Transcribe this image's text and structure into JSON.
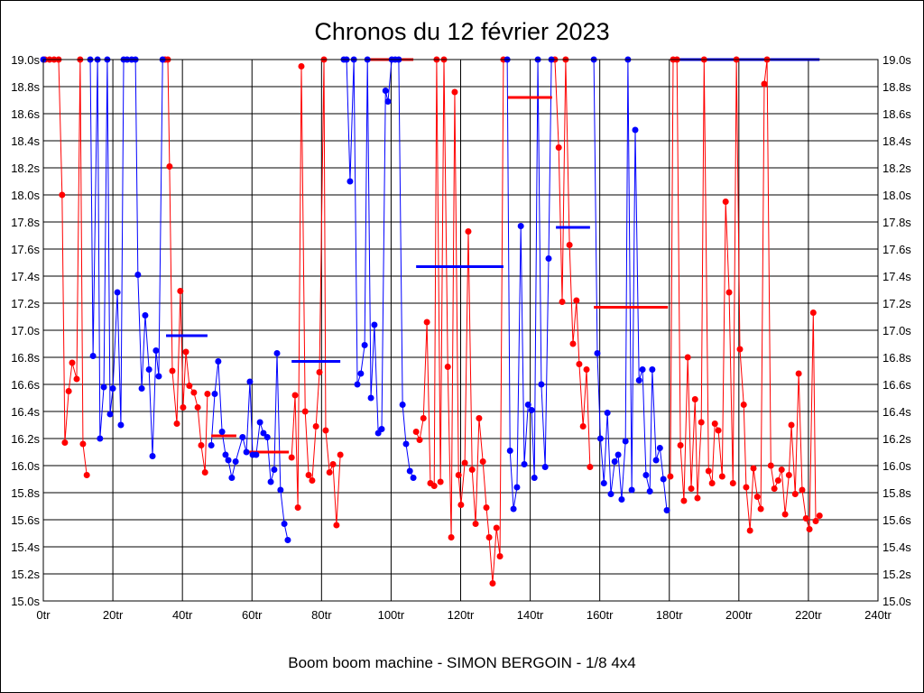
{
  "chart_data": {
    "type": "line",
    "title": "Chronos du 12 février 2023",
    "xlabel": "Boom boom machine - SIMON BERGOIN - 1/8 4x4",
    "ylabel": "",
    "xlim": [
      0,
      240
    ],
    "ylim": [
      15.0,
      19.0
    ],
    "grid": true,
    "x_ticks": [
      "0tr",
      "20tr",
      "40tr",
      "60tr",
      "80tr",
      "100tr",
      "120tr",
      "140tr",
      "160tr",
      "180tr",
      "200tr",
      "220tr",
      "240tr"
    ],
    "y_ticks": [
      "15.0s",
      "15.2s",
      "15.4s",
      "15.6s",
      "15.8s",
      "16.0s",
      "16.2s",
      "16.4s",
      "16.6s",
      "16.8s",
      "17.0s",
      "17.2s",
      "17.4s",
      "17.6s",
      "17.8s",
      "18.0s",
      "18.2s",
      "18.4s",
      "18.6s",
      "18.8s",
      "19.0s"
    ],
    "series": [
      {
        "name": "red",
        "color": "#ff0000",
        "stints": [
          [
            [
              0.5,
              19.0
            ],
            [
              1.8,
              19.0
            ],
            [
              3.1,
              19.0
            ],
            [
              4.4,
              19.0
            ],
            [
              5.4,
              18.0
            ],
            [
              6.2,
              16.17
            ],
            [
              7.3,
              16.55
            ],
            [
              8.3,
              16.76
            ],
            [
              9.6,
              16.64
            ],
            [
              10.6,
              19.0
            ],
            [
              11.4,
              16.16
            ],
            [
              12.5,
              15.93
            ]
          ],
          [
            [
              35.0,
              19.0
            ],
            [
              35.8,
              19.0
            ],
            [
              36.3,
              18.21
            ],
            [
              37.1,
              16.7
            ],
            [
              38.4,
              16.31
            ],
            [
              39.4,
              17.29
            ],
            [
              40.2,
              16.43
            ],
            [
              41.0,
              16.84
            ],
            [
              42.0,
              16.59
            ],
            [
              43.3,
              16.54
            ],
            [
              44.4,
              16.43
            ],
            [
              45.4,
              16.15
            ],
            [
              46.5,
              15.95
            ],
            [
              47.2,
              16.53
            ]
          ],
          [
            [
              71.4,
              16.06
            ],
            [
              72.4,
              16.52
            ],
            [
              73.2,
              15.69
            ],
            [
              74.2,
              18.95
            ],
            [
              75.3,
              16.4
            ],
            [
              76.3,
              15.93
            ],
            [
              77.3,
              15.89
            ],
            [
              78.4,
              16.29
            ],
            [
              79.4,
              16.69
            ],
            [
              80.7,
              19.0
            ],
            [
              81.2,
              16.26
            ],
            [
              82.3,
              15.95
            ],
            [
              83.3,
              16.01
            ],
            [
              84.3,
              15.56
            ],
            [
              85.4,
              16.08
            ]
          ],
          [
            [
              107.2,
              16.25
            ],
            [
              108.2,
              16.19
            ],
            [
              109.3,
              16.35
            ],
            [
              110.3,
              17.06
            ],
            [
              111.3,
              15.87
            ],
            [
              112.4,
              15.85
            ],
            [
              113.1,
              19.0
            ],
            [
              114.2,
              15.88
            ],
            [
              115.2,
              19.0
            ],
            [
              116.3,
              16.73
            ],
            [
              117.3,
              15.47
            ],
            [
              118.3,
              18.76
            ],
            [
              119.4,
              15.93
            ],
            [
              120.1,
              15.71
            ],
            [
              121.2,
              16.02
            ],
            [
              122.2,
              17.73
            ],
            [
              123.3,
              15.97
            ],
            [
              124.3,
              15.57
            ],
            [
              125.3,
              16.35
            ],
            [
              126.4,
              16.03
            ],
            [
              127.4,
              15.69
            ],
            [
              128.2,
              15.47
            ],
            [
              129.2,
              15.13
            ],
            [
              130.3,
              15.54
            ],
            [
              131.3,
              15.33
            ],
            [
              132.3,
              19.0
            ]
          ],
          [
            [
              147.1,
              19.0
            ],
            [
              148.2,
              18.35
            ],
            [
              149.2,
              17.21
            ],
            [
              150.2,
              19.0
            ],
            [
              151.3,
              17.63
            ],
            [
              152.3,
              16.9
            ],
            [
              153.3,
              17.22
            ],
            [
              154.1,
              16.75
            ],
            [
              155.2,
              16.29
            ],
            [
              156.2,
              16.71
            ],
            [
              157.2,
              15.99
            ]
          ],
          [
            [
              180.3,
              15.92
            ],
            [
              181.1,
              19.0
            ],
            [
              182.2,
              19.0
            ],
            [
              183.2,
              16.15
            ],
            [
              184.2,
              15.74
            ],
            [
              185.3,
              16.8
            ],
            [
              186.3,
              15.83
            ],
            [
              187.4,
              16.49
            ],
            [
              188.1,
              15.76
            ],
            [
              189.2,
              16.32
            ],
            [
              190.0,
              19.0
            ],
            [
              191.3,
              15.96
            ],
            [
              192.3,
              15.87
            ],
            [
              193.1,
              16.31
            ],
            [
              194.1,
              16.26
            ],
            [
              195.2,
              15.92
            ],
            [
              196.2,
              17.95
            ],
            [
              197.2,
              17.28
            ],
            [
              198.3,
              15.87
            ],
            [
              199.3,
              19.0
            ],
            [
              200.3,
              16.86
            ],
            [
              201.4,
              16.45
            ],
            [
              202.1,
              15.84
            ],
            [
              203.2,
              15.52
            ],
            [
              204.2,
              15.98
            ],
            [
              205.3,
              15.77
            ],
            [
              206.3,
              15.68
            ],
            [
              207.3,
              18.82
            ],
            [
              208.1,
              19.0
            ],
            [
              209.2,
              16.0
            ],
            [
              210.2,
              15.83
            ],
            [
              211.3,
              15.89
            ],
            [
              212.3,
              15.97
            ],
            [
              213.3,
              15.64
            ],
            [
              214.4,
              15.93
            ],
            [
              215.1,
              16.3
            ],
            [
              216.2,
              15.79
            ],
            [
              217.2,
              16.68
            ],
            [
              218.2,
              15.82
            ],
            [
              219.3,
              15.61
            ],
            [
              220.3,
              15.53
            ],
            [
              221.4,
              17.13
            ],
            [
              222.1,
              15.59
            ],
            [
              223.2,
              15.63
            ]
          ]
        ],
        "averages": [
          [
            48.3,
            55.5,
            16.22
          ],
          [
            57.6,
            70.6,
            16.1
          ],
          [
            93.4,
            106.4,
            19.0
          ],
          [
            133.6,
            146.3,
            18.72
          ],
          [
            158.3,
            179.6,
            17.17
          ]
        ]
      },
      {
        "name": "blue",
        "color": "#0000ff",
        "stints": [
          [
            [
              0,
              19.0
            ],
            [
              13.5,
              19.0
            ],
            [
              14.3,
              16.81
            ],
            [
              15.6,
              19.0
            ],
            [
              16.3,
              16.2
            ],
            [
              17.4,
              16.58
            ],
            [
              18.4,
              19.0
            ],
            [
              19.2,
              16.38
            ],
            [
              20.0,
              16.57
            ],
            [
              21.3,
              17.28
            ],
            [
              22.3,
              16.3
            ],
            [
              23.1,
              19.0
            ],
            [
              24.1,
              19.0
            ],
            [
              25.4,
              19.0
            ],
            [
              26.5,
              19.0
            ],
            [
              27.2,
              17.41
            ],
            [
              28.3,
              16.57
            ],
            [
              29.3,
              17.11
            ],
            [
              30.4,
              16.71
            ],
            [
              31.4,
              16.07
            ],
            [
              32.4,
              16.85
            ],
            [
              33.2,
              16.66
            ],
            [
              34.3,
              19.0
            ]
          ],
          [
            [
              48.3,
              16.15
            ],
            [
              49.3,
              16.53
            ],
            [
              50.3,
              16.77
            ],
            [
              51.4,
              16.25
            ],
            [
              52.4,
              16.08
            ],
            [
              53.2,
              16.04
            ],
            [
              54.2,
              15.91
            ],
            [
              55.3,
              16.03
            ],
            [
              57.3,
              16.21
            ],
            [
              58.4,
              16.1
            ],
            [
              59.4,
              16.62
            ],
            [
              60.2,
              16.08
            ],
            [
              61.2,
              16.08
            ],
            [
              62.3,
              16.32
            ],
            [
              63.3,
              16.24
            ],
            [
              64.4,
              16.21
            ],
            [
              65.4,
              15.88
            ],
            [
              66.4,
              15.97
            ],
            [
              67.2,
              16.83
            ],
            [
              68.2,
              15.82
            ],
            [
              69.3,
              15.57
            ],
            [
              70.3,
              15.45
            ]
          ],
          [
            [
              86.4,
              19.0
            ],
            [
              87.2,
              19.0
            ],
            [
              88.2,
              18.1
            ],
            [
              89.3,
              19.0
            ],
            [
              90.3,
              16.6
            ],
            [
              91.3,
              16.68
            ],
            [
              92.4,
              16.89
            ],
            [
              93.2,
              19.0
            ],
            [
              94.2,
              16.5
            ],
            [
              95.2,
              17.04
            ],
            [
              96.3,
              16.24
            ],
            [
              97.3,
              16.27
            ],
            [
              98.4,
              18.77
            ],
            [
              99.1,
              18.69
            ],
            [
              100.2,
              19.0
            ],
            [
              101.2,
              19.0
            ],
            [
              102.2,
              19.0
            ],
            [
              103.3,
              16.45
            ],
            [
              104.3,
              16.16
            ],
            [
              105.4,
              15.96
            ],
            [
              106.4,
              15.91
            ]
          ],
          [
            [
              133.4,
              19.0
            ],
            [
              134.2,
              16.11
            ],
            [
              135.2,
              15.68
            ],
            [
              136.2,
              15.84
            ],
            [
              137.3,
              17.77
            ],
            [
              138.3,
              16.01
            ],
            [
              139.4,
              16.45
            ],
            [
              140.4,
              16.41
            ],
            [
              141.2,
              15.91
            ],
            [
              142.2,
              19.0
            ],
            [
              143.2,
              16.6
            ],
            [
              144.3,
              15.99
            ],
            [
              145.3,
              17.53
            ],
            [
              146.1,
              19.0
            ]
          ],
          [
            [
              158.3,
              19.0
            ],
            [
              159.3,
              16.83
            ],
            [
              160.2,
              16.2
            ],
            [
              161.2,
              15.87
            ],
            [
              162.2,
              16.39
            ],
            [
              163.2,
              15.79
            ],
            [
              164.3,
              16.03
            ],
            [
              165.3,
              16.08
            ],
            [
              166.3,
              15.75
            ],
            [
              167.4,
              16.18
            ],
            [
              168.1,
              19.0
            ],
            [
              169.2,
              15.82
            ],
            [
              170.2,
              18.48
            ],
            [
              171.3,
              16.63
            ],
            [
              172.3,
              16.71
            ],
            [
              173.3,
              15.93
            ],
            [
              174.4,
              15.81
            ],
            [
              175.1,
              16.71
            ],
            [
              176.2,
              16.04
            ],
            [
              177.3,
              16.13
            ],
            [
              178.3,
              15.9
            ],
            [
              179.3,
              15.67
            ]
          ]
        ],
        "averages": [
          [
            35.3,
            47.2,
            16.96
          ],
          [
            71.4,
            85.4,
            16.77
          ],
          [
            107.2,
            132.3,
            17.47
          ],
          [
            147.4,
            157.2,
            17.76
          ],
          [
            182.2,
            223.2,
            19.0
          ]
        ]
      }
    ]
  }
}
